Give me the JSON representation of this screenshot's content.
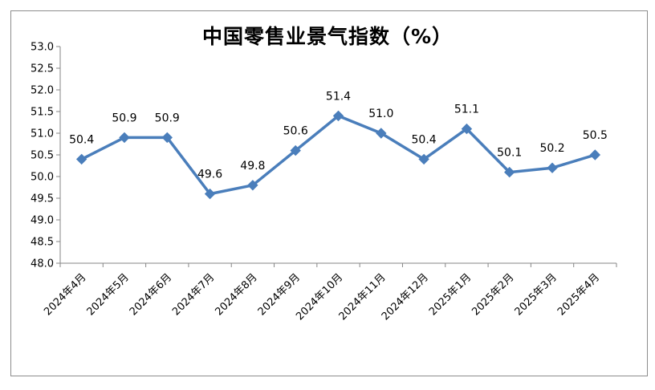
{
  "chart_data": {
    "type": "line",
    "title": "中国零售业景气指数（%）",
    "categories": [
      "2024年4月",
      "2024年5月",
      "2024年6月",
      "2024年7月",
      "2024年8月",
      "2024年9月",
      "2024年10月",
      "2024年11月",
      "2024年12月",
      "2025年1月",
      "2025年2月",
      "2025年3月",
      "2025年4月"
    ],
    "series": [
      {
        "values": [
          50.4,
          50.9,
          50.9,
          49.6,
          49.8,
          50.6,
          51.4,
          51.0,
          50.4,
          51.1,
          50.1,
          50.2,
          50.5
        ],
        "labels": [
          "50.4",
          "50.9",
          "50.9",
          "49.6",
          "49.8",
          "50.6",
          "51.4",
          "51.0",
          "50.4",
          "51.1",
          "50.1",
          "50.2",
          "50.5"
        ]
      }
    ],
    "ylim": [
      48.0,
      53.0
    ],
    "yticks": [
      "48.0",
      "48.5",
      "49.0",
      "49.5",
      "50.0",
      "50.5",
      "51.0",
      "51.5",
      "52.0",
      "52.5",
      "53.0"
    ],
    "xlabel": "",
    "ylabel": "",
    "grid": false,
    "legend": "none",
    "line_color": "#4a7ebb",
    "marker": "diamond"
  }
}
